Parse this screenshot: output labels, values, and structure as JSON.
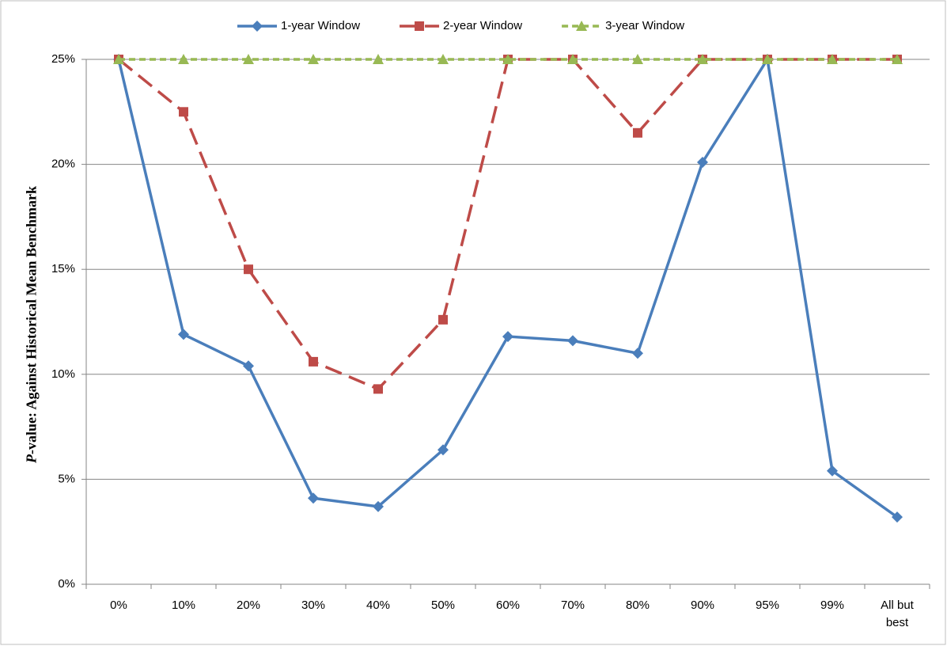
{
  "chart_data": {
    "type": "line",
    "y_label": "P-value: Against Historical Mean Benchmark",
    "categories": [
      "0%",
      "10%",
      "20%",
      "30%",
      "40%",
      "50%",
      "60%",
      "70%",
      "80%",
      "90%",
      "95%",
      "99%",
      "All but best"
    ],
    "series": [
      {
        "name": "1-year Window",
        "color": "#4a7ebb",
        "line_style": "solid",
        "marker": "diamond",
        "values": [
          25,
          11.9,
          10.4,
          4.1,
          3.7,
          6.4,
          11.8,
          11.6,
          11.0,
          20.1,
          25,
          5.4,
          3.2
        ]
      },
      {
        "name": "2-year Window",
        "color": "#be4b48",
        "line_style": "dashed",
        "marker": "square",
        "values": [
          25,
          22.5,
          15.0,
          10.6,
          9.3,
          12.6,
          25,
          25,
          21.5,
          25,
          25,
          25,
          25
        ]
      },
      {
        "name": "3-year Window",
        "color": "#98b954",
        "line_style": "short-dashed",
        "marker": "triangle",
        "values": [
          25,
          25,
          25,
          25,
          25,
          25,
          25,
          25,
          25,
          25,
          25,
          25,
          25
        ]
      }
    ],
    "ylim": [
      0,
      25
    ],
    "yticks": [
      {
        "value": 0,
        "label": "0%"
      },
      {
        "value": 5,
        "label": "5%"
      },
      {
        "value": 10,
        "label": "10%"
      },
      {
        "value": 15,
        "label": "15%"
      },
      {
        "value": 20,
        "label": "20%"
      },
      {
        "value": 25,
        "label": "25%"
      }
    ],
    "grid": true,
    "legend": "top"
  }
}
